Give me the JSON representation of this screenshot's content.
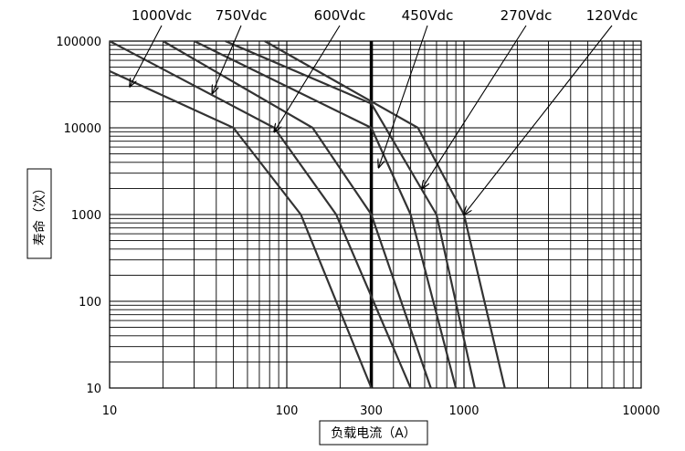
{
  "chart_data": {
    "type": "line",
    "xlabel": "负载电流（A）",
    "ylabel": "寿命（次）",
    "xscale": "log",
    "yscale": "log",
    "xlim": [
      10,
      10000
    ],
    "ylim": [
      10,
      100000
    ],
    "x_ticks": [
      "10",
      "100",
      "300",
      "1000",
      "10000"
    ],
    "y_ticks": [
      "100000",
      "10000",
      "1000",
      "100",
      "10"
    ],
    "highlight_x": 300,
    "grid": true,
    "series": [
      {
        "name": "1000Vdc",
        "points": [
          [
            10,
            45000
          ],
          [
            50,
            10000
          ],
          [
            120,
            1000
          ],
          [
            300,
            10
          ]
        ]
      },
      {
        "name": "750Vdc",
        "points": [
          [
            10,
            100000
          ],
          [
            85,
            10000
          ],
          [
            190,
            1000
          ],
          [
            500,
            10
          ]
        ]
      },
      {
        "name": "600Vdc",
        "points": [
          [
            20,
            100000
          ],
          [
            140,
            10000
          ],
          [
            300,
            1000
          ],
          [
            650,
            10
          ]
        ]
      },
      {
        "name": "450Vdc",
        "points": [
          [
            30,
            100000
          ],
          [
            300,
            10000
          ],
          [
            500,
            1000
          ],
          [
            900,
            10
          ]
        ]
      },
      {
        "name": "270Vdc",
        "points": [
          [
            45,
            100000
          ],
          [
            300,
            19000
          ],
          [
            700,
            1000
          ],
          [
            1150,
            10
          ]
        ]
      },
      {
        "name": "120Vdc",
        "points": [
          [
            75,
            100000
          ],
          [
            550,
            10000
          ],
          [
            1000,
            1000
          ],
          [
            1700,
            10
          ]
        ]
      }
    ],
    "annotations": [
      {
        "label": "1000Vdc",
        "target": [
          13,
          30000
        ]
      },
      {
        "label": "750Vdc",
        "target": [
          38,
          25000
        ]
      },
      {
        "label": "600Vdc",
        "target": [
          85,
          9000
        ]
      },
      {
        "label": "450Vdc",
        "target": [
          330,
          3500
        ]
      },
      {
        "label": "270Vdc",
        "target": [
          580,
          2000
        ]
      },
      {
        "label": "120Vdc",
        "target": [
          1000,
          1000
        ]
      }
    ]
  }
}
